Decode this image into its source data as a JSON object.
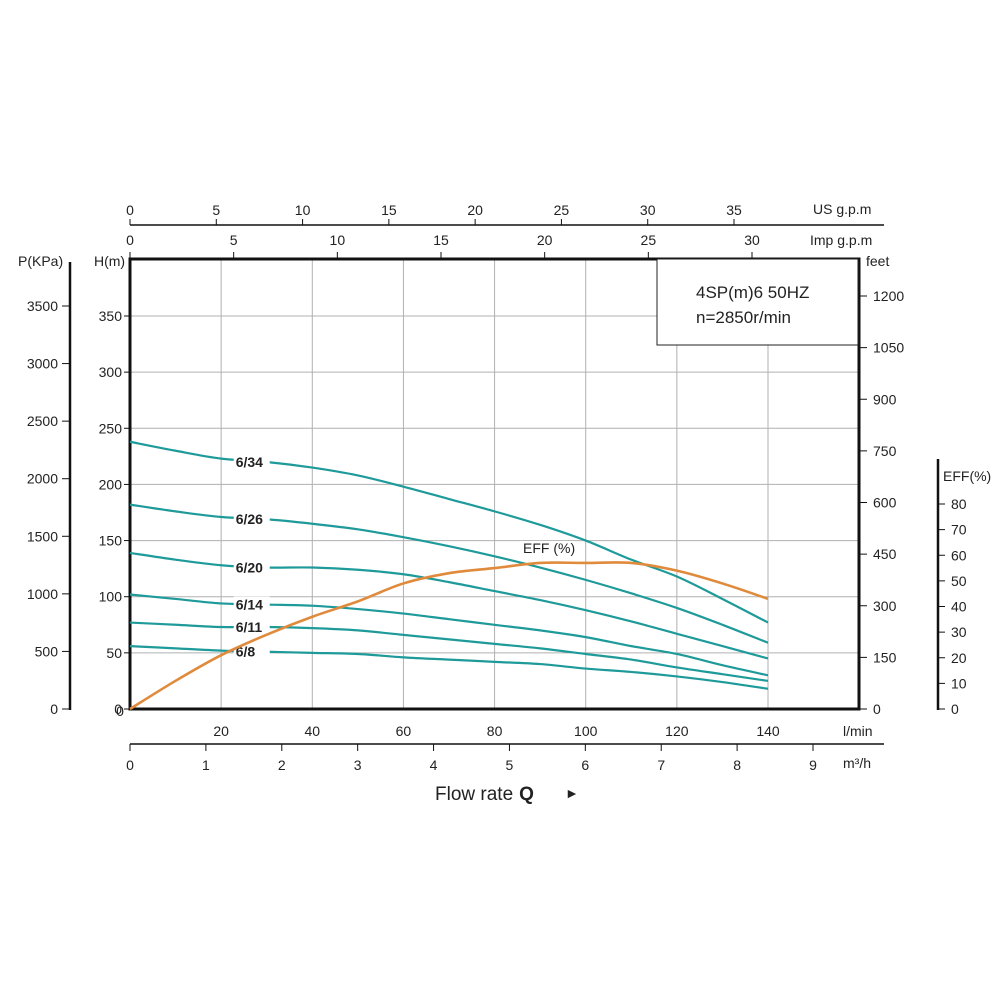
{
  "chart_data": {
    "type": "line",
    "info_box": {
      "line1": "4SP(m)6  50HZ",
      "line2": "n=2850r/min"
    },
    "axes": {
      "x_lmin": {
        "label": "l/min",
        "ticks": [
          20,
          40,
          60,
          80,
          100,
          120,
          140
        ],
        "range": [
          0,
          140
        ]
      },
      "x_m3h": {
        "label": "m³/h",
        "ticks": [
          0,
          1,
          2,
          3,
          4,
          5,
          6,
          7,
          8,
          9
        ]
      },
      "x_usgpm": {
        "label": "US g.p.m",
        "ticks": [
          0,
          5,
          10,
          15,
          20,
          25,
          30,
          35
        ]
      },
      "x_impgpm": {
        "label": "Imp g.p.m",
        "ticks": [
          0,
          5,
          10,
          15,
          20,
          25,
          30
        ]
      },
      "y_head": {
        "label": "H(m)",
        "ticks": [
          0,
          50,
          100,
          150,
          200,
          250,
          300,
          350
        ],
        "range": [
          0,
          400
        ]
      },
      "y_pressure": {
        "label": "P(KPa)",
        "ticks": [
          0,
          500,
          1000,
          1500,
          2000,
          2500,
          3000,
          3500
        ]
      },
      "y_feet": {
        "label": "feet",
        "ticks": [
          0,
          150,
          300,
          450,
          600,
          750,
          900,
          1050,
          1200
        ]
      },
      "y_eff": {
        "label": "EFF(%)",
        "ticks": [
          0,
          10,
          20,
          30,
          40,
          50,
          60,
          70,
          80
        ]
      }
    },
    "flow_label": {
      "text": "Flow rate",
      "bold": "Q",
      "arrow": "►"
    },
    "grid": true,
    "series": [
      {
        "name": "6/34",
        "x": [
          0,
          10,
          20,
          30,
          40,
          50,
          60,
          70,
          80,
          90,
          100,
          110,
          120,
          130,
          140
        ],
        "values": [
          238,
          230,
          223,
          220,
          215,
          208,
          198,
          187,
          176,
          164,
          150,
          133,
          118,
          98,
          77
        ]
      },
      {
        "name": "6/26",
        "x": [
          0,
          10,
          20,
          30,
          40,
          50,
          60,
          70,
          80,
          90,
          100,
          110,
          120,
          130,
          140
        ],
        "values": [
          182,
          176,
          171,
          169,
          165,
          160,
          153,
          145,
          136,
          126,
          115,
          103,
          90,
          75,
          59
        ]
      },
      {
        "name": "6/20",
        "x": [
          0,
          10,
          20,
          30,
          40,
          50,
          60,
          70,
          80,
          90,
          100,
          110,
          120,
          130,
          140
        ],
        "values": [
          139,
          133,
          128,
          126,
          126,
          124,
          120,
          113,
          105,
          97,
          88,
          78,
          67,
          56,
          45
        ]
      },
      {
        "name": "6/14",
        "x": [
          0,
          10,
          20,
          30,
          40,
          50,
          60,
          70,
          80,
          90,
          100,
          110,
          120,
          130,
          140
        ],
        "values": [
          102,
          98,
          94,
          93,
          92,
          89,
          85,
          80,
          75,
          70,
          64,
          56,
          49,
          39,
          30
        ]
      },
      {
        "name": "6/11",
        "x": [
          0,
          10,
          20,
          30,
          40,
          50,
          60,
          70,
          80,
          90,
          100,
          110,
          120,
          130,
          140
        ],
        "values": [
          77,
          75,
          73,
          73,
          72,
          70,
          66,
          62,
          58,
          54,
          49,
          44,
          37,
          31,
          25
        ]
      },
      {
        "name": "6/8",
        "x": [
          0,
          10,
          20,
          30,
          40,
          50,
          60,
          70,
          80,
          90,
          100,
          110,
          120,
          130,
          140
        ],
        "values": [
          56,
          54,
          52,
          51,
          50,
          49,
          46,
          44,
          42,
          40,
          36,
          33,
          29,
          24,
          18
        ]
      }
    ],
    "efficiency": {
      "name": "EFF (%)",
      "x": [
        0,
        10,
        20,
        30,
        40,
        50,
        60,
        70,
        80,
        90,
        100,
        110,
        120,
        130,
        140
      ],
      "values": [
        0,
        11,
        21,
        29,
        36,
        42,
        49,
        53,
        55,
        57,
        57,
        57,
        54,
        49,
        43
      ]
    }
  }
}
